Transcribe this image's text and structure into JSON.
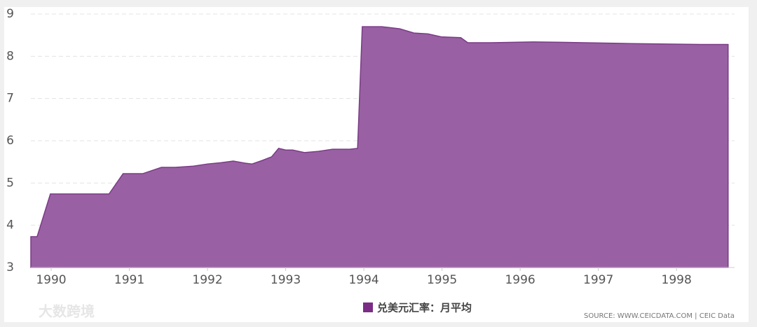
{
  "chart_data": {
    "type": "area",
    "x": [
      1989.74,
      1989.82,
      1989.99,
      1990.74,
      1990.92,
      1991.17,
      1991.41,
      1991.59,
      1991.82,
      1992.0,
      1992.17,
      1992.33,
      1992.48,
      1992.57,
      1992.71,
      1992.82,
      1992.91,
      1993.0,
      1993.09,
      1993.24,
      1993.42,
      1993.6,
      1993.82,
      1993.92,
      1993.98,
      1994.23,
      1994.32,
      1994.46,
      1994.64,
      1994.82,
      1994.99,
      1995.24,
      1995.33,
      1995.62,
      1996.16,
      1996.52,
      1997.42,
      1998.32,
      1998.66
    ],
    "series": [
      {
        "name": "兑美元汇率：月平均",
        "color": "#9960a3",
        "values": [
          3.73,
          3.73,
          4.74,
          4.74,
          5.22,
          5.22,
          5.37,
          5.37,
          5.4,
          5.45,
          5.48,
          5.52,
          5.47,
          5.45,
          5.54,
          5.62,
          5.82,
          5.78,
          5.78,
          5.72,
          5.75,
          5.8,
          5.8,
          5.82,
          8.7,
          8.7,
          8.68,
          8.65,
          8.55,
          8.53,
          8.46,
          8.44,
          8.32,
          8.32,
          8.34,
          8.33,
          8.3,
          8.28,
          8.28
        ]
      }
    ],
    "xlim": [
      1989.74,
      1998.68
    ],
    "xticks": [
      1990,
      1991,
      1992,
      1993,
      1994,
      1995,
      1996,
      1997,
      1998
    ],
    "ylim": [
      3,
      9
    ],
    "yticks": [
      3,
      4,
      5,
      6,
      7,
      8,
      9
    ],
    "grid": true,
    "source": "SOURCE: WWW.CEICDATA.COM | CEIC Data",
    "watermark": "大数跨境"
  }
}
